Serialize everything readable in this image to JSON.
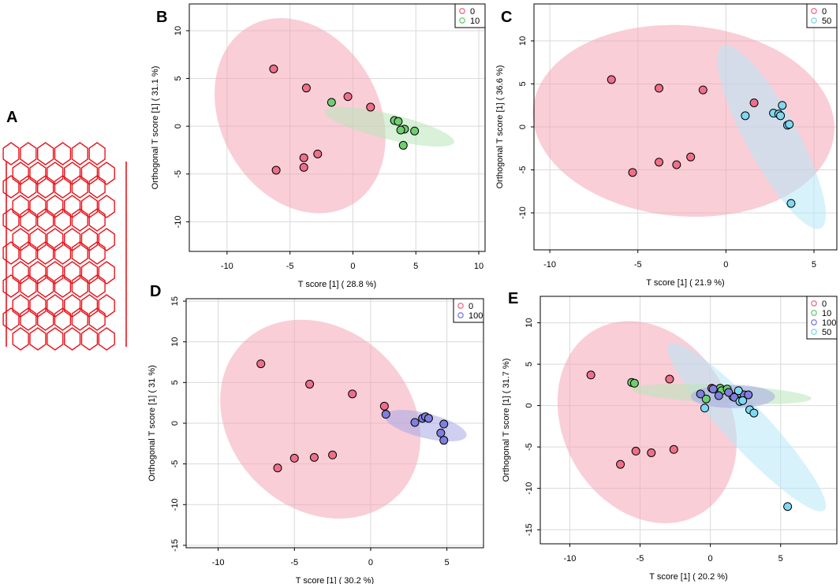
{
  "figure": {
    "panel_a_label": "A",
    "nanotube_color": "#e8141c"
  },
  "colors": {
    "0": "#ef6f8a",
    "10": "#6fcf6f",
    "50": "#7fd8f2",
    "100": "#7f7fe0",
    "ellipse_0": "#f4a5b6",
    "ellipse_10": "#b8e6b8",
    "ellipse_50": "#b7e8f7",
    "ellipse_100": "#a8a8e8",
    "grid": "#d9d9d9"
  },
  "chart_data": [
    {
      "panel": "B",
      "type": "scatter",
      "xlabel": "T score [1] ( 28.8 %)",
      "ylabel": "Orthogonal T score [1] ( 31.1 %)",
      "xlim": [
        -13,
        10.5
      ],
      "ylim": [
        -13.1,
        12.8
      ],
      "xticks": [
        -10,
        -5,
        0,
        5,
        10
      ],
      "yticks": [
        -10,
        -5,
        0,
        5,
        10
      ],
      "legend": [
        "0",
        "10"
      ],
      "legend_position": "top-right",
      "ellipses": [
        {
          "group": "0",
          "cx": -4.2,
          "cy": 1.1,
          "rx": 6.5,
          "ry": 10.4,
          "angle": 14
        },
        {
          "group": "10",
          "cx": 2.9,
          "cy": -0.05,
          "rx": 5.4,
          "ry": 1.3,
          "angle": -18
        }
      ],
      "series": [
        {
          "name": "0",
          "points": [
            [
              -6.3,
              6.0
            ],
            [
              -3.7,
              4.0
            ],
            [
              -0.4,
              3.1
            ],
            [
              1.4,
              2.0
            ],
            [
              -3.9,
              -3.3
            ],
            [
              -2.8,
              -2.9
            ],
            [
              -6.1,
              -4.6
            ],
            [
              -3.9,
              -4.3
            ]
          ]
        },
        {
          "name": "10",
          "points": [
            [
              -1.7,
              2.5
            ],
            [
              3.3,
              0.6
            ],
            [
              3.6,
              0.5
            ],
            [
              4.1,
              -0.3
            ],
            [
              3.8,
              -0.4
            ],
            [
              4.9,
              -0.5
            ],
            [
              4.0,
              -2.0
            ]
          ]
        }
      ]
    },
    {
      "panel": "C",
      "type": "scatter",
      "xlabel": "T score [1] ( 21.9 %)",
      "ylabel": "Orthogonal T score [1] ( 36.6 %)",
      "xlim": [
        -10.9,
        6.3
      ],
      "ylim": [
        -14.3,
        14.3
      ],
      "xticks": [
        -10,
        -5,
        0,
        5
      ],
      "yticks": [
        -10,
        -5,
        0,
        5,
        10
      ],
      "legend": [
        "0",
        "50"
      ],
      "legend_position": "top-right",
      "ellipses": [
        {
          "group": "0",
          "cx": -2.4,
          "cy": 0.7,
          "rx": 8.5,
          "ry": 11.2,
          "angle": 8
        },
        {
          "group": "50",
          "cx": 2.6,
          "cy": -1.2,
          "rx": 1.6,
          "ry": 11.0,
          "angle": 14
        }
      ],
      "series": [
        {
          "name": "0",
          "points": [
            [
              -6.5,
              5.5
            ],
            [
              -3.8,
              4.5
            ],
            [
              -1.3,
              4.3
            ],
            [
              1.6,
              2.8
            ],
            [
              -5.3,
              -5.3
            ],
            [
              -3.8,
              -4.1
            ],
            [
              -2.8,
              -4.4
            ],
            [
              -2.0,
              -3.5
            ]
          ]
        },
        {
          "name": "50",
          "points": [
            [
              1.1,
              1.3
            ],
            [
              2.7,
              1.6
            ],
            [
              3.0,
              1.5
            ],
            [
              3.1,
              1.3
            ],
            [
              3.2,
              2.5
            ],
            [
              3.5,
              0.2
            ],
            [
              3.6,
              0.3
            ],
            [
              3.7,
              -8.9
            ]
          ]
        }
      ]
    },
    {
      "panel": "D",
      "type": "scatter",
      "xlabel": "T score [1] ( 30.2 %)",
      "ylabel": "Orthogonal T score [1] ( 31 %)",
      "xlim": [
        -12.1,
        7.4
      ],
      "ylim": [
        -15.3,
        15.3
      ],
      "xticks": [
        -10,
        -5,
        0,
        5
      ],
      "yticks": [
        -15,
        -10,
        -5,
        0,
        5,
        10,
        15
      ],
      "legend": [
        "0",
        "100"
      ],
      "legend_position": "top-right",
      "ellipses": [
        {
          "group": "0",
          "cx": -3.3,
          "cy": 0.5,
          "rx": 6.4,
          "ry": 12.3,
          "angle": 8
        },
        {
          "group": "100",
          "cx": 3.6,
          "cy": -0.3,
          "rx": 3.0,
          "ry": 1.4,
          "angle": -30
        }
      ],
      "series": [
        {
          "name": "0",
          "points": [
            [
              -7.2,
              7.3
            ],
            [
              -4.0,
              4.8
            ],
            [
              -1.2,
              3.6
            ],
            [
              0.9,
              2.1
            ],
            [
              -6.1,
              -5.5
            ],
            [
              -5.0,
              -4.3
            ],
            [
              -3.7,
              -4.2
            ],
            [
              -2.5,
              -3.9
            ]
          ]
        },
        {
          "name": "100",
          "points": [
            [
              1.0,
              1.1
            ],
            [
              2.9,
              0.1
            ],
            [
              3.4,
              0.6
            ],
            [
              3.6,
              0.8
            ],
            [
              3.8,
              0.6
            ],
            [
              4.8,
              -0.1
            ],
            [
              4.6,
              -1.2
            ],
            [
              4.8,
              -2.1
            ]
          ]
        }
      ]
    },
    {
      "panel": "E",
      "type": "scatter",
      "xlabel": "T score [1] ( 20.2 %)",
      "ylabel": "Orthogonal T score [1] ( 31.7 %)",
      "xlim": [
        -12.1,
        9.0
      ],
      "ylim": [
        -16.7,
        13.2
      ],
      "xticks": [
        -10,
        -5,
        0,
        5
      ],
      "yticks": [
        -15,
        -10,
        -5,
        0,
        5,
        10
      ],
      "legend": [
        "0",
        "10",
        "100",
        "50"
      ],
      "legend_position": "top-right",
      "ellipses": [
        {
          "group": "0",
          "cx": -4.5,
          "cy": -2.0,
          "rx": 6.2,
          "ry": 12.3,
          "angle": 8
        },
        {
          "group": "50",
          "cx": 2.6,
          "cy": -2.6,
          "rx": 1.8,
          "ry": 11.5,
          "angle": 28
        },
        {
          "group": "10",
          "cx": 0.8,
          "cy": 1.4,
          "rx": 6.4,
          "ry": 1.1,
          "angle": -5
        },
        {
          "group": "100",
          "cx": 1.6,
          "cy": 1.1,
          "rx": 3.0,
          "ry": 1.4,
          "angle": 0
        }
      ],
      "series": [
        {
          "name": "0",
          "points": [
            [
              -8.5,
              3.7
            ],
            [
              -2.9,
              3.2
            ],
            [
              0.1,
              2.1
            ],
            [
              -6.4,
              -7.1
            ],
            [
              -5.3,
              -5.5
            ],
            [
              -4.2,
              -5.7
            ],
            [
              -2.6,
              -5.3
            ]
          ]
        },
        {
          "name": "10",
          "points": [
            [
              -5.6,
              2.8
            ],
            [
              -5.4,
              2.7
            ],
            [
              0.7,
              2.1
            ],
            [
              0.8,
              1.8
            ],
            [
              1.2,
              2.0
            ],
            [
              1.6,
              1.1
            ],
            [
              2.1,
              1.5
            ],
            [
              -0.3,
              0.8
            ]
          ]
        },
        {
          "name": "100",
          "points": [
            [
              -0.7,
              1.4
            ],
            [
              0.6,
              1.2
            ],
            [
              1.3,
              1.6
            ],
            [
              1.7,
              1.0
            ],
            [
              2.4,
              1.3
            ],
            [
              2.7,
              1.3
            ],
            [
              0.2,
              2.0
            ]
          ]
        },
        {
          "name": "50",
          "points": [
            [
              -0.4,
              -0.3
            ],
            [
              2.0,
              1.8
            ],
            [
              2.1,
              0.5
            ],
            [
              2.3,
              0.6
            ],
            [
              2.8,
              -0.5
            ],
            [
              3.1,
              -0.9
            ],
            [
              5.5,
              -12.2
            ]
          ]
        }
      ]
    }
  ]
}
